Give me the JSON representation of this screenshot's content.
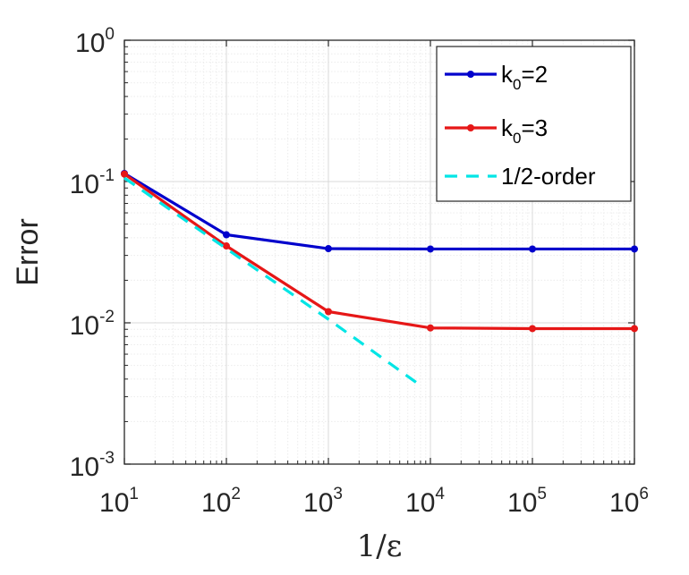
{
  "chart_data": {
    "type": "line",
    "xscale": "log",
    "yscale": "log",
    "xlim": [
      10,
      1000000
    ],
    "ylim": [
      0.001,
      1
    ],
    "grid": "on (major and minor)",
    "xlabel": "1/ε",
    "ylabel": "Error",
    "title": "",
    "x_ticks": [
      {
        "base": "10",
        "exp": "1",
        "value": 10
      },
      {
        "base": "10",
        "exp": "2",
        "value": 100
      },
      {
        "base": "10",
        "exp": "3",
        "value": 1000
      },
      {
        "base": "10",
        "exp": "4",
        "value": 10000
      },
      {
        "base": "10",
        "exp": "5",
        "value": 100000
      },
      {
        "base": "10",
        "exp": "6",
        "value": 1000000
      }
    ],
    "y_ticks": [
      {
        "base": "10",
        "exp": "0",
        "value": 1
      },
      {
        "base": "10",
        "exp": "-1",
        "value": 0.1
      },
      {
        "base": "10",
        "exp": "-2",
        "value": 0.01
      },
      {
        "base": "10",
        "exp": "-3",
        "value": 0.001
      }
    ],
    "legend_position": "top-right",
    "series": [
      {
        "name_main": "k",
        "name_sub": "0",
        "name_tail": "=2",
        "color": "#0000cc",
        "style": "solid",
        "marker": "dot",
        "x": [
          10,
          100,
          1000,
          10000,
          100000,
          1000000
        ],
        "y": [
          0.114,
          0.042,
          0.0335,
          0.0333,
          0.0333,
          0.0333
        ]
      },
      {
        "name_main": "k",
        "name_sub": "0",
        "name_tail": "=3",
        "color": "#e61717",
        "style": "solid",
        "marker": "dot",
        "x": [
          10,
          100,
          1000,
          10000,
          100000,
          1000000
        ],
        "y": [
          0.113,
          0.035,
          0.012,
          0.0092,
          0.0091,
          0.0091
        ]
      },
      {
        "name": "1/2-order",
        "color": "#00e5e5",
        "style": "dashed",
        "marker": "none",
        "x": [
          10,
          100,
          1000,
          8000
        ],
        "y": [
          0.106,
          0.0335,
          0.0106,
          0.0036
        ]
      }
    ]
  }
}
